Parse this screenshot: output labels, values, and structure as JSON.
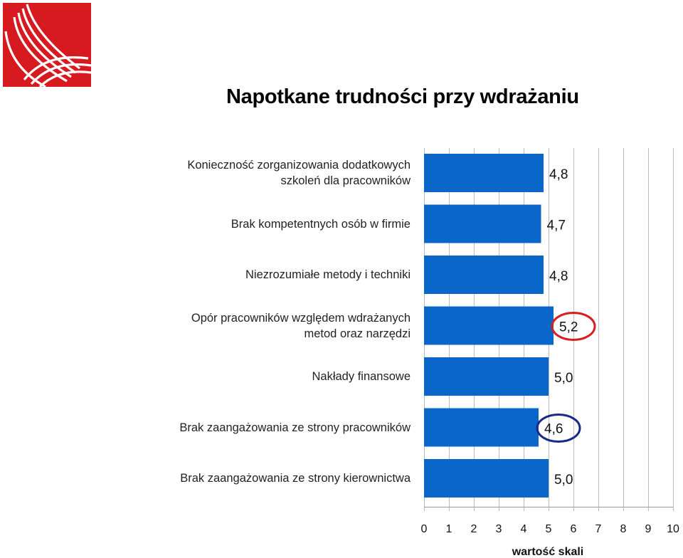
{
  "title": "Napotkane trudności przy wdrażaniu",
  "colors": {
    "bar": "#0a66c8",
    "highlight_high": "#d61f1f",
    "highlight_low": "#1a2a8c",
    "grid": "#bcbcbc"
  },
  "logo": {
    "icon": "logo-icon"
  },
  "chart_data": {
    "type": "bar",
    "orientation": "horizontal",
    "categories": [
      "Konieczność zorganizowania dodatkowych szkoleń dla pracowników",
      "Brak kompetentnych osób w firmie",
      "Niezrozumiałe metody i techniki",
      "Opór pracowników względem wdrażanych metod oraz narzędzi",
      "Nakłady finansowe",
      "Brak zaangażowania ze strony pracowników",
      "Brak zaangażowania ze strony kierownictwa"
    ],
    "category_lines": [
      [
        "Konieczność zorganizowania dodatkowych",
        "szkoleń dla pracowników"
      ],
      [
        "Brak kompetentnych osób w firmie"
      ],
      [
        "Niezrozumiałe metody i techniki"
      ],
      [
        "Opór pracowników względem wdrażanych",
        "metod oraz narzędzi"
      ],
      [
        "Nakłady finansowe"
      ],
      [
        "Brak zaangażowania ze strony pracowników"
      ],
      [
        "Brak zaangażowania ze strony kierownictwa"
      ]
    ],
    "values": [
      4.8,
      4.7,
      4.8,
      5.2,
      5.0,
      4.6,
      5.0
    ],
    "value_labels": [
      "4,8",
      "4,7",
      "4,8",
      "5,2",
      "5,0",
      "4,6",
      "5,0"
    ],
    "highlighted": [
      {
        "index": 3,
        "color": "#d61f1f"
      },
      {
        "index": 5,
        "color": "#1a2a8c"
      }
    ],
    "xlim": [
      0,
      10
    ],
    "xticks": [
      "0",
      "1",
      "2",
      "3",
      "4",
      "5",
      "6",
      "7",
      "8",
      "9",
      "10"
    ],
    "xlabel": "wartość skali",
    "grid": true
  }
}
